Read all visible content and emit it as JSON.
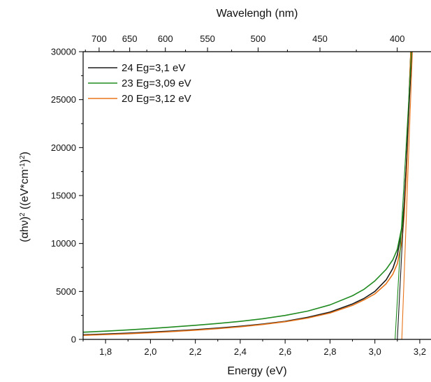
{
  "chart_data": {
    "type": "line",
    "title": "",
    "xlabel": "Energy (eV)",
    "ylabel_html": "(αhν)² ((eV*cm⁻¹)²)",
    "ylabel_parts": {
      "p1": "(αhν)",
      "p1_sup": "2",
      "p2": " ((eV*cm",
      "p2_sup": "-1",
      "p3": ")",
      "p3_sup": "2",
      "p4": ")"
    },
    "top_xlabel": "Wavelengh (nm)",
    "xlim": [
      1.7,
      3.25
    ],
    "ylim": [
      0,
      30000
    ],
    "x_ticks": [
      1.8,
      2.0,
      2.2,
      2.4,
      2.6,
      2.8,
      3.0,
      3.2
    ],
    "x_tick_labels": [
      "1,8",
      "2,0",
      "2,2",
      "2,4",
      "2,6",
      "2,8",
      "3,0",
      "3,2"
    ],
    "y_ticks": [
      0,
      5000,
      10000,
      15000,
      20000,
      25000,
      30000
    ],
    "y_tick_labels": [
      "0",
      "5000",
      "10000",
      "15000",
      "20000",
      "25000",
      "30000"
    ],
    "top_ticks_nm": [
      700,
      650,
      600,
      550,
      500,
      450,
      400
    ],
    "top_tick_labels": [
      "700",
      "650",
      "600",
      "550",
      "500",
      "450",
      "400"
    ],
    "grid": false,
    "legend_position": "top-left",
    "series": [
      {
        "name": "24 Eg=3,1 eV",
        "color": "#1a1a1a",
        "x": [
          1.7,
          1.8,
          1.9,
          2.0,
          2.1,
          2.2,
          2.3,
          2.4,
          2.5,
          2.6,
          2.7,
          2.8,
          2.9,
          2.95,
          3.0,
          3.05,
          3.08,
          3.1,
          3.12,
          3.13,
          3.14,
          3.15,
          3.16
        ],
        "y": [
          480,
          560,
          650,
          760,
          880,
          1020,
          1180,
          1370,
          1600,
          1880,
          2300,
          2850,
          3700,
          4250,
          5000,
          6200,
          7400,
          8800,
          11500,
          14000,
          18000,
          24000,
          30000
        ]
      },
      {
        "name": "23 Eg=3,09 eV",
        "color": "#1f8a1f",
        "x": [
          1.7,
          1.8,
          1.9,
          2.0,
          2.1,
          2.2,
          2.3,
          2.4,
          2.5,
          2.6,
          2.7,
          2.8,
          2.9,
          2.95,
          3.0,
          3.05,
          3.08,
          3.1,
          3.12,
          3.13,
          3.14,
          3.15,
          3.16
        ],
        "y": [
          750,
          860,
          990,
          1130,
          1300,
          1470,
          1660,
          1880,
          2150,
          2500,
          2950,
          3600,
          4550,
          5200,
          6100,
          7300,
          8300,
          9400,
          11700,
          13800,
          17500,
          23500,
          30000
        ]
      },
      {
        "name": "20 Eg=3,12 eV",
        "color": "#e8741a",
        "x": [
          1.7,
          1.8,
          1.9,
          2.0,
          2.1,
          2.2,
          2.3,
          2.4,
          2.5,
          2.6,
          2.7,
          2.8,
          2.9,
          2.95,
          3.0,
          3.05,
          3.08,
          3.1,
          3.12,
          3.13,
          3.14,
          3.15,
          3.16
        ],
        "y": [
          420,
          500,
          590,
          700,
          820,
          960,
          1120,
          1310,
          1550,
          1840,
          2220,
          2750,
          3550,
          4100,
          4750,
          5800,
          6800,
          7900,
          10200,
          12800,
          17000,
          23200,
          30000
        ]
      }
    ],
    "fit_lines": [
      {
        "color": "#1a1a1a",
        "x": [
          3.1,
          3.165
        ],
        "y": [
          0,
          30000
        ]
      },
      {
        "color": "#1f8a1f",
        "x": [
          3.09,
          3.163
        ],
        "y": [
          0,
          30000
        ]
      },
      {
        "color": "#e8741a",
        "x": [
          3.12,
          3.167
        ],
        "y": [
          0,
          30000
        ]
      }
    ]
  }
}
